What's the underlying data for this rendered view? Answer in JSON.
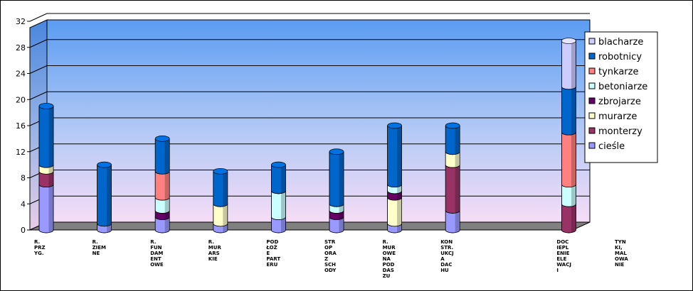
{
  "chart_data": {
    "type": "bar",
    "stacked": true,
    "three_d": true,
    "ylim": [
      0,
      32
    ],
    "yticks": [
      "0",
      "4",
      "8",
      "12",
      "16",
      "20",
      "24",
      "28",
      "32"
    ],
    "grid": true,
    "legend_position": "right",
    "categories": [
      [
        "R.",
        "PRZ",
        "YG."
      ],
      [
        "R.",
        "ZIEM",
        "NE"
      ],
      [
        "R.",
        "FUN",
        "DAM",
        "ENT",
        "OWE"
      ],
      [
        "R.",
        "MUR",
        "ARS",
        "KIE"
      ],
      [
        "POD",
        "ŁOŻ",
        "E",
        "PART",
        "ERU"
      ],
      [
        "STR",
        "OP",
        "ORA",
        "Z",
        "SCH",
        "ODY"
      ],
      [
        "R.",
        "MUR",
        "OWE",
        "NA",
        "POD",
        "DAS",
        "ZU"
      ],
      [
        "KON",
        "STR.",
        "UKCJ",
        "A",
        "DAC",
        "HU"
      ],
      [],
      [
        "DOC",
        "IEPL",
        "ENIE",
        "ELE",
        "WACJ",
        "I"
      ],
      [
        "TYN",
        "KI,",
        "MAL",
        "OWA",
        "NIE"
      ]
    ],
    "series": [
      {
        "name": "cieśle",
        "color": "#9999ff",
        "values": [
          7,
          1,
          2,
          1,
          2,
          2,
          1,
          3,
          0,
          0,
          0
        ]
      },
      {
        "name": "monterzy",
        "color": "#993366",
        "values": [
          2,
          0,
          0,
          0,
          0,
          0,
          0,
          7,
          0,
          4,
          0
        ]
      },
      {
        "name": "murarze",
        "color": "#ffffcc",
        "values": [
          1,
          0,
          0,
          3,
          0,
          0,
          4,
          2,
          0,
          0,
          0
        ]
      },
      {
        "name": "zbrojarze",
        "color": "#660066",
        "values": [
          0,
          0,
          1,
          0,
          0,
          1,
          1,
          0,
          0,
          0,
          0
        ]
      },
      {
        "name": "betoniarze",
        "color": "#ccffff",
        "values": [
          0,
          0,
          2,
          0,
          4,
          1,
          1,
          0,
          0,
          3,
          0
        ]
      },
      {
        "name": "tynkarze",
        "color": "#ff8080",
        "values": [
          0,
          0,
          4,
          0,
          0,
          0,
          0,
          0,
          0,
          8,
          0
        ]
      },
      {
        "name": "robotnicy",
        "color": "#0066cc",
        "values": [
          9,
          9,
          5,
          5,
          4,
          8,
          9,
          4,
          0,
          7,
          0
        ]
      },
      {
        "name": "blacharze",
        "color": "#ccccff",
        "values": [
          0,
          0,
          0,
          0,
          0,
          0,
          0,
          0,
          0,
          7,
          0
        ]
      }
    ],
    "legend_order": [
      "blacharze",
      "robotnicy",
      "tynkarze",
      "betoniarze",
      "zbrojarze",
      "murarze",
      "monterzy",
      "cieśle"
    ]
  }
}
